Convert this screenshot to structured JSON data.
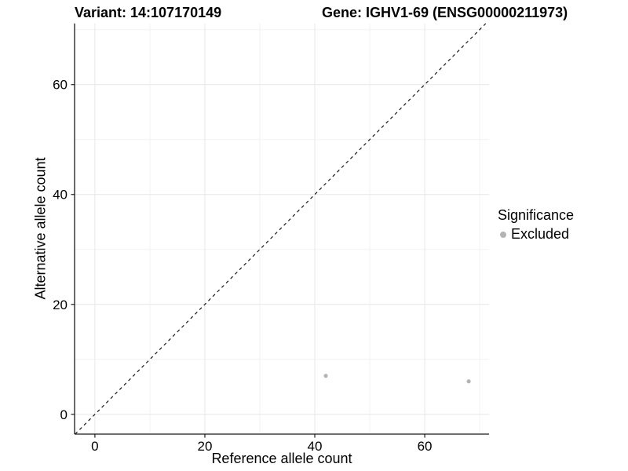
{
  "titles": {
    "variant": "Variant: 14:107170149",
    "gene": "Gene: IGHV1-69 (ENSG00000211973)"
  },
  "chart_data": {
    "type": "scatter",
    "title_left": "Variant: 14:107170149",
    "title_right": "Gene: IGHV1-69 (ENSG00000211973)",
    "xlabel": "Reference allele count",
    "ylabel": "Alternative allele count",
    "xlim": [
      -3.7,
      71.7
    ],
    "ylim": [
      -3.6,
      71.1
    ],
    "x_ticks": [
      0,
      20,
      40,
      60
    ],
    "y_ticks": [
      0,
      20,
      40,
      60
    ],
    "x_minor_ticks": [
      10,
      30,
      50,
      70
    ],
    "y_minor_ticks": [
      10,
      30,
      50,
      70
    ],
    "grid": true,
    "identity_line": {
      "style": "dashed",
      "x1": -3.6,
      "y1": -3.6,
      "x2": 71.1,
      "y2": 71.1
    },
    "series": [
      {
        "name": "Excluded",
        "color": "#b4b4b4",
        "points": [
          {
            "x": 42,
            "y": 7
          },
          {
            "x": 68,
            "y": 6
          }
        ]
      }
    ],
    "legend": {
      "title": "Significance",
      "position": "right",
      "items": [
        {
          "label": "Excluded",
          "color": "#b4b4b4"
        }
      ]
    }
  },
  "colors": {
    "point": "#b4b4b4",
    "grid_major": "#e7e7e7",
    "grid_minor": "#f2f2f2",
    "axis": "#1a1a1a",
    "text": "#000000"
  }
}
